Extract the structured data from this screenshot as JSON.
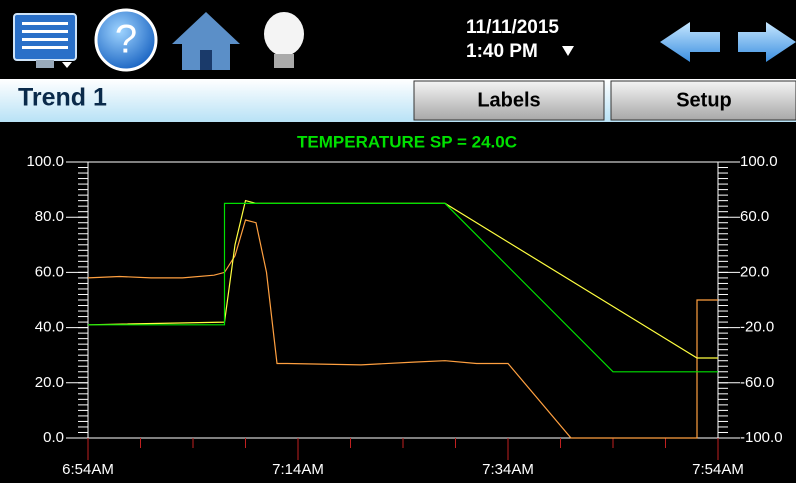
{
  "header": {
    "date": "11/11/2015",
    "time": "1:40 PM"
  },
  "title_bar": {
    "title": "Trend 1",
    "buttons": [
      "Labels",
      "Setup"
    ]
  },
  "chart_data": {
    "type": "line",
    "title": "TEMPERATURE SP = 24.0C",
    "xlim": [
      "6:54AM",
      "7:54AM"
    ],
    "xticks": [
      "6:54AM",
      "7:14AM",
      "7:34AM",
      "7:54AM"
    ],
    "ylim": [
      0,
      100
    ],
    "yticks": [
      {
        "value": 0,
        "label": "0.0"
      },
      {
        "value": 20,
        "label": "20.0"
      },
      {
        "value": 40,
        "label": "40.0"
      },
      {
        "value": 60,
        "label": "60.0"
      },
      {
        "value": 80,
        "label": "80.0"
      },
      {
        "value": 100,
        "label": "100.0"
      }
    ],
    "y2lim": [
      -100,
      100
    ],
    "y2ticks": [
      {
        "value": -100,
        "label": "-100.0"
      },
      {
        "value": -60,
        "label": "-60.0"
      },
      {
        "value": -20,
        "label": "-20.0"
      },
      {
        "value": 20,
        "label": "20.0"
      },
      {
        "value": 60,
        "label": "60.0"
      },
      {
        "value": 100,
        "label": "100.0"
      }
    ],
    "series": [
      {
        "color": "#ffa040",
        "x": [
          "6:54AM",
          "6:57AM",
          "7:00AM",
          "7:03AM",
          "7:06AM",
          "7:07AM",
          "7:08AM",
          "7:09AM",
          "7:10AM",
          "7:11AM",
          "7:12AM",
          "7:13AM",
          "7:20AM",
          "7:25AM",
          "7:28AM",
          "7:31AM",
          "7:34AM",
          "7:40AM",
          "7:52AM",
          "7:52AM",
          "7:54AM"
        ],
        "values": [
          58,
          58.5,
          58,
          58,
          59,
          60,
          66,
          79,
          78,
          60,
          27,
          27,
          26.5,
          27.5,
          28,
          27,
          27,
          0,
          0,
          50,
          50
        ]
      },
      {
        "color": "#ffff40",
        "x": [
          "6:54AM",
          "7:07AM",
          "7:08AM",
          "7:09AM",
          "7:10AM",
          "7:28AM",
          "7:52AM",
          "7:54AM"
        ],
        "values": [
          41,
          42,
          70,
          86,
          85,
          85,
          29,
          29
        ]
      },
      {
        "color": "#00e000",
        "x": [
          "6:54AM",
          "7:07AM",
          "7:07AM",
          "7:28AM",
          "7:44AM",
          "7:54AM"
        ],
        "values": [
          41,
          41,
          85,
          85,
          24,
          24
        ]
      }
    ]
  }
}
